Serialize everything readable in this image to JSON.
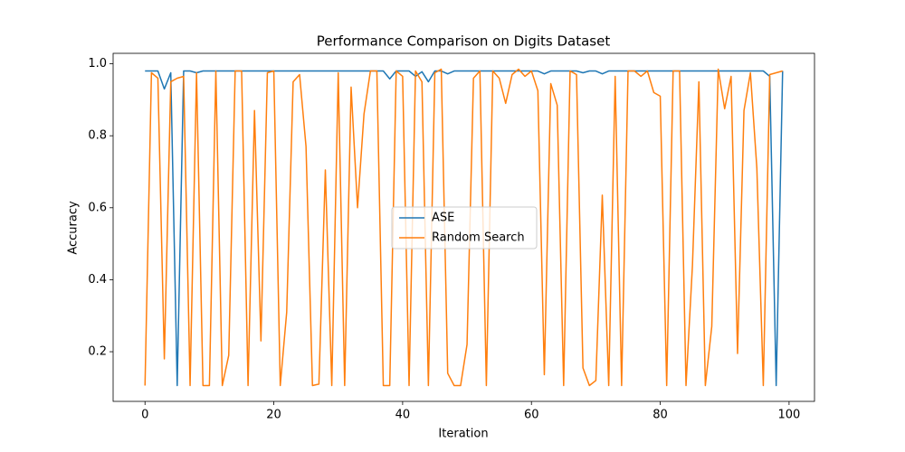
{
  "chart_data": {
    "type": "line",
    "title": "Performance Comparison on Digits Dataset",
    "x_label": "Iteration",
    "y_label": "Accuracy",
    "x": [
      0,
      1,
      2,
      3,
      4,
      5,
      6,
      7,
      8,
      9,
      10,
      11,
      12,
      13,
      14,
      15,
      16,
      17,
      18,
      19,
      20,
      21,
      22,
      23,
      24,
      25,
      26,
      27,
      28,
      29,
      30,
      31,
      32,
      33,
      34,
      35,
      36,
      37,
      38,
      39,
      40,
      41,
      42,
      43,
      44,
      45,
      46,
      47,
      48,
      49,
      50,
      51,
      52,
      53,
      54,
      55,
      56,
      57,
      58,
      59,
      60,
      61,
      62,
      63,
      64,
      65,
      66,
      67,
      68,
      69,
      70,
      71,
      72,
      73,
      74,
      75,
      76,
      77,
      78,
      79,
      80,
      81,
      82,
      83,
      84,
      85,
      86,
      87,
      88,
      89,
      90,
      91,
      92,
      93,
      94,
      95,
      96,
      97,
      98,
      99
    ],
    "series": [
      {
        "name": "ASE",
        "color": "#1f77b4",
        "values": [
          0.98,
          0.98,
          0.98,
          0.93,
          0.975,
          0.106,
          0.98,
          0.98,
          0.975,
          0.98,
          0.98,
          0.98,
          0.98,
          0.98,
          0.98,
          0.98,
          0.98,
          0.98,
          0.98,
          0.98,
          0.98,
          0.98,
          0.98,
          0.98,
          0.98,
          0.98,
          0.98,
          0.98,
          0.98,
          0.98,
          0.98,
          0.98,
          0.98,
          0.98,
          0.98,
          0.98,
          0.98,
          0.98,
          0.958,
          0.98,
          0.98,
          0.98,
          0.965,
          0.978,
          0.95,
          0.98,
          0.98,
          0.972,
          0.98,
          0.98,
          0.98,
          0.98,
          0.98,
          0.98,
          0.98,
          0.98,
          0.98,
          0.98,
          0.98,
          0.98,
          0.98,
          0.98,
          0.972,
          0.98,
          0.98,
          0.98,
          0.98,
          0.98,
          0.975,
          0.98,
          0.98,
          0.972,
          0.98,
          0.98,
          0.98,
          0.98,
          0.98,
          0.98,
          0.98,
          0.98,
          0.98,
          0.98,
          0.98,
          0.98,
          0.98,
          0.98,
          0.98,
          0.98,
          0.98,
          0.98,
          0.98,
          0.98,
          0.98,
          0.98,
          0.98,
          0.98,
          0.98,
          0.965,
          0.106,
          0.98
        ]
      },
      {
        "name": "Random Search",
        "color": "#ff7f0e",
        "values": [
          0.106,
          0.975,
          0.96,
          0.18,
          0.95,
          0.96,
          0.965,
          0.106,
          0.975,
          0.106,
          0.106,
          0.98,
          0.106,
          0.19,
          0.98,
          0.98,
          0.106,
          0.87,
          0.23,
          0.975,
          0.98,
          0.106,
          0.31,
          0.95,
          0.97,
          0.77,
          0.106,
          0.11,
          0.705,
          0.106,
          0.975,
          0.106,
          0.935,
          0.6,
          0.86,
          0.98,
          0.98,
          0.106,
          0.106,
          0.98,
          0.965,
          0.106,
          0.98,
          0.95,
          0.106,
          0.975,
          0.985,
          0.14,
          0.106,
          0.106,
          0.22,
          0.96,
          0.98,
          0.106,
          0.98,
          0.96,
          0.89,
          0.97,
          0.985,
          0.965,
          0.98,
          0.925,
          0.136,
          0.945,
          0.885,
          0.106,
          0.98,
          0.97,
          0.155,
          0.106,
          0.12,
          0.635,
          0.106,
          0.965,
          0.106,
          0.98,
          0.98,
          0.965,
          0.98,
          0.92,
          0.91,
          0.106,
          0.98,
          0.98,
          0.106,
          0.44,
          0.95,
          0.106,
          0.27,
          0.985,
          0.875,
          0.965,
          0.195,
          0.87,
          0.975,
          0.71,
          0.106,
          0.97,
          0.975,
          0.98
        ]
      }
    ],
    "xlim": [
      -4.95,
      103.95
    ],
    "ylim": [
      0.062,
      1.029
    ],
    "xticks": [
      0,
      20,
      40,
      60,
      80,
      100
    ],
    "yticks": [
      0.2,
      0.4,
      0.6,
      0.8,
      {
        "value": 1,
        "label": "1.0"
      }
    ],
    "legend": "center"
  }
}
